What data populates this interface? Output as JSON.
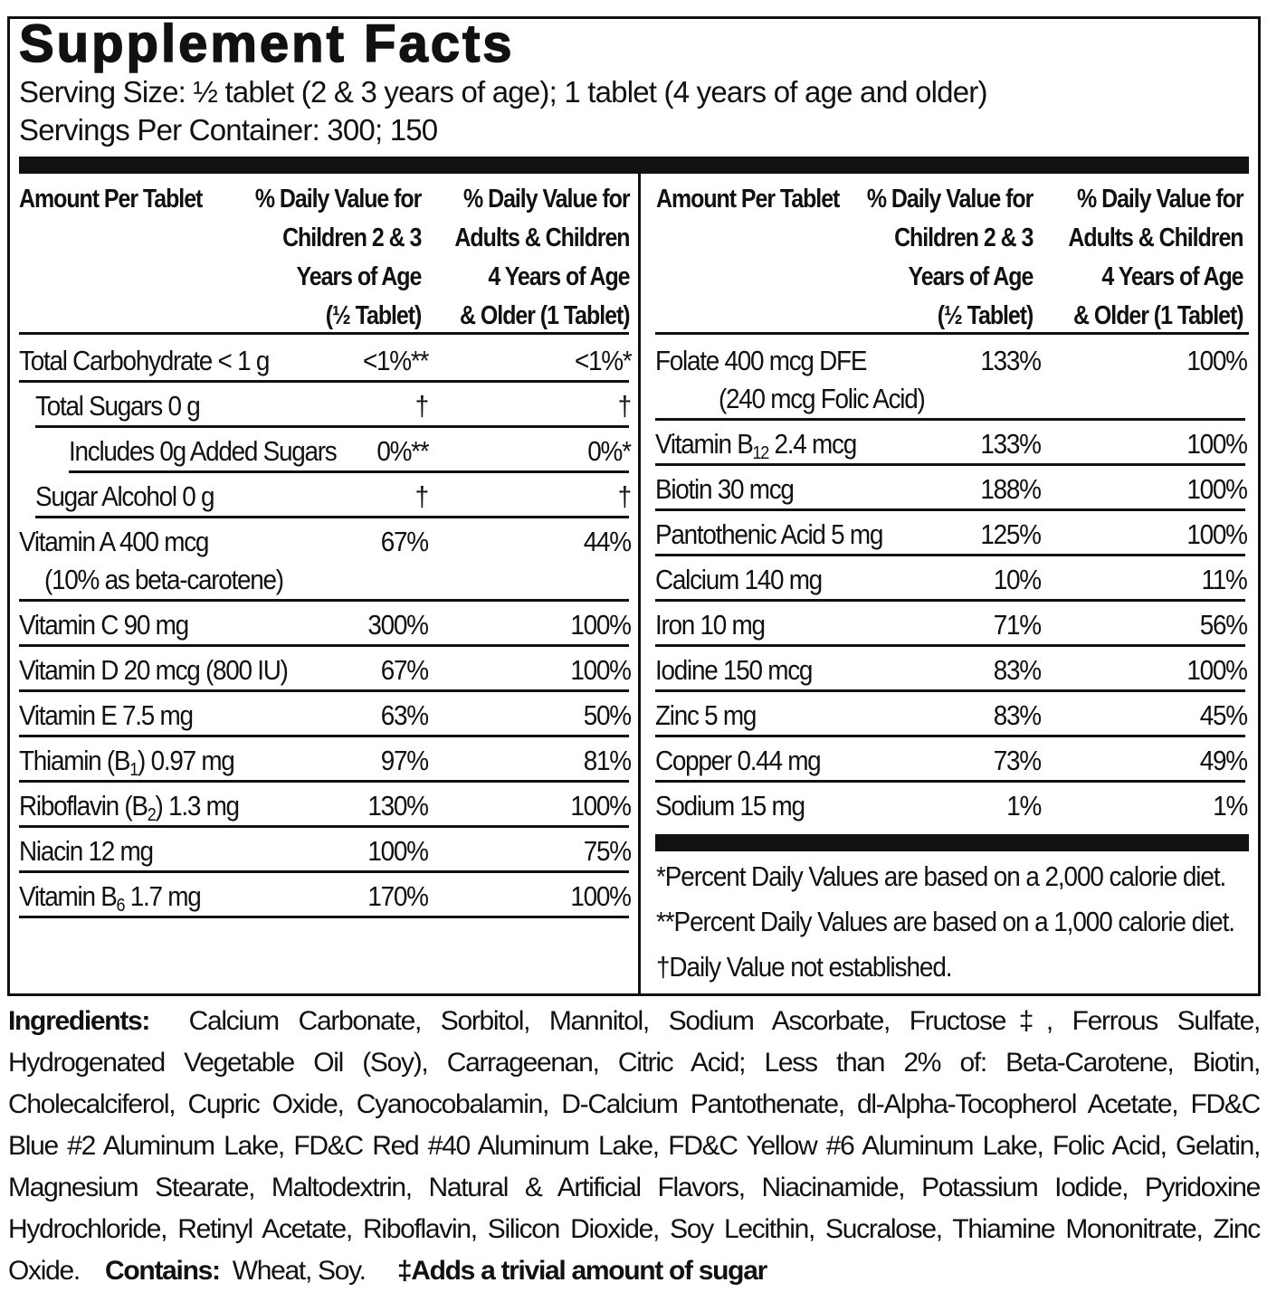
{
  "title": "Supplement Facts",
  "serving_size": "Serving Size:  ½ tablet (2 & 3 years of age); 1 tablet (4 years of age and older)",
  "servings_per_container": "Servings Per Container:  300; 150",
  "headers": {
    "amount": "Amount Per Tablet",
    "children": [
      "% Daily Value for",
      "Children 2 & 3",
      "Years of Age",
      "(½ Tablet)"
    ],
    "adults": [
      "% Daily Value for",
      "Adults & Children",
      "4 Years of Age",
      "& Older (1 Tablet)"
    ]
  },
  "left_rows": [
    {
      "name": "Total Carbohydrate < 1 g",
      "indent": 0,
      "child": "<1%**",
      "adult": "<1%*"
    },
    {
      "name": "Total Sugars 0 g",
      "indent": 1,
      "child": "†",
      "adult": "†"
    },
    {
      "name": "Includes 0g Added Sugars",
      "indent": 2,
      "child": "0%**",
      "adult": "0%*"
    },
    {
      "name": "Sugar Alcohol 0 g",
      "indent": 1,
      "child": "†",
      "adult": "†"
    },
    {
      "name": "Vitamin A 400 mcg",
      "line2": "(10% as beta-carotene)",
      "indent": 0,
      "child": "67%",
      "adult": "44%"
    },
    {
      "name": "Vitamin C 90 mg",
      "indent": 0,
      "child": "300%",
      "adult": "100%"
    },
    {
      "name": "Vitamin D 20 mcg (800 IU)",
      "indent": 0,
      "child": "67%",
      "adult": "100%"
    },
    {
      "name": "Vitamin E 7.5 mg",
      "indent": 0,
      "child": "63%",
      "adult": "50%"
    },
    {
      "name": "Thiamin (B",
      "sub": "1",
      "post": ") 0.97 mg",
      "indent": 0,
      "child": "97%",
      "adult": "81%"
    },
    {
      "name": "Riboflavin (B",
      "sub": "2",
      "post": ") 1.3 mg",
      "indent": 0,
      "child": "130%",
      "adult": "100%"
    },
    {
      "name": "Niacin 12 mg",
      "indent": 0,
      "child": "100%",
      "adult": "75%"
    },
    {
      "name": "Vitamin B",
      "sub": "6",
      "post": " 1.7 mg",
      "indent": 0,
      "child": "170%",
      "adult": "100%"
    }
  ],
  "right_rows": [
    {
      "name": "Folate 400 mcg DFE",
      "line2": "(240 mcg Folic Acid)",
      "indent": 0,
      "child": "133%",
      "adult": "100%"
    },
    {
      "name": "Vitamin B",
      "sub": "12",
      "post": " 2.4 mcg",
      "indent": 0,
      "child": "133%",
      "adult": "100%"
    },
    {
      "name": "Biotin 30 mcg",
      "indent": 0,
      "child": "188%",
      "adult": "100%"
    },
    {
      "name": "Pantothenic Acid 5 mg",
      "indent": 0,
      "child": "125%",
      "adult": "100%"
    },
    {
      "name": "Calcium 140 mg",
      "indent": 0,
      "child": "10%",
      "adult": "11%"
    },
    {
      "name": "Iron 10 mg",
      "indent": 0,
      "child": "71%",
      "adult": "56%"
    },
    {
      "name": "Iodine 150 mcg",
      "indent": 0,
      "child": "83%",
      "adult": "100%"
    },
    {
      "name": "Zinc 5 mg",
      "indent": 0,
      "child": "83%",
      "adult": "45%"
    },
    {
      "name": "Copper 0.44 mg",
      "indent": 0,
      "child": "73%",
      "adult": "49%"
    },
    {
      "name": "Sodium 15 mg",
      "indent": 0,
      "child": "1%",
      "adult": "1%"
    }
  ],
  "footnotes": [
    "*Percent Daily Values are based on a 2,000 calorie diet.",
    "**Percent Daily Values are based on a 1,000 calorie diet.",
    "†Daily Value not established."
  ],
  "ingredients": {
    "label": "Ingredients:",
    "text": "Calcium Carbonate, Sorbitol, Mannitol, Sodium Ascorbate, Fructose‡, Ferrous Sulfate, Hydrogenated Vegetable Oil (Soy), Carrageenan, Citric Acid; Less than 2% of: Beta-Carotene, Biotin, Cholecalciferol, Cupric Oxide, Cyanocobalamin, D-Calcium Pantothenate, dl-Alpha-Tocopherol Acetate, FD&C Blue #2 Aluminum Lake, FD&C Red #40 Aluminum Lake, FD&C Yellow #6 Aluminum Lake, Folic Acid, Gelatin, Magnesium Stearate, Maltodextrin, Natural & Artificial Flavors, Niacinamide, Potassium Iodide, Pyridoxine Hydrochloride, Retinyl Acetate, Riboflavin, Silicon Dioxide, Soy Lecithin, Sucralose, Thiamine Mononitrate, Zinc Oxide.",
    "contains_label": "Contains:",
    "contains": "Wheat, Soy.",
    "sugar_note": "‡Adds a trivial amount of sugar"
  }
}
